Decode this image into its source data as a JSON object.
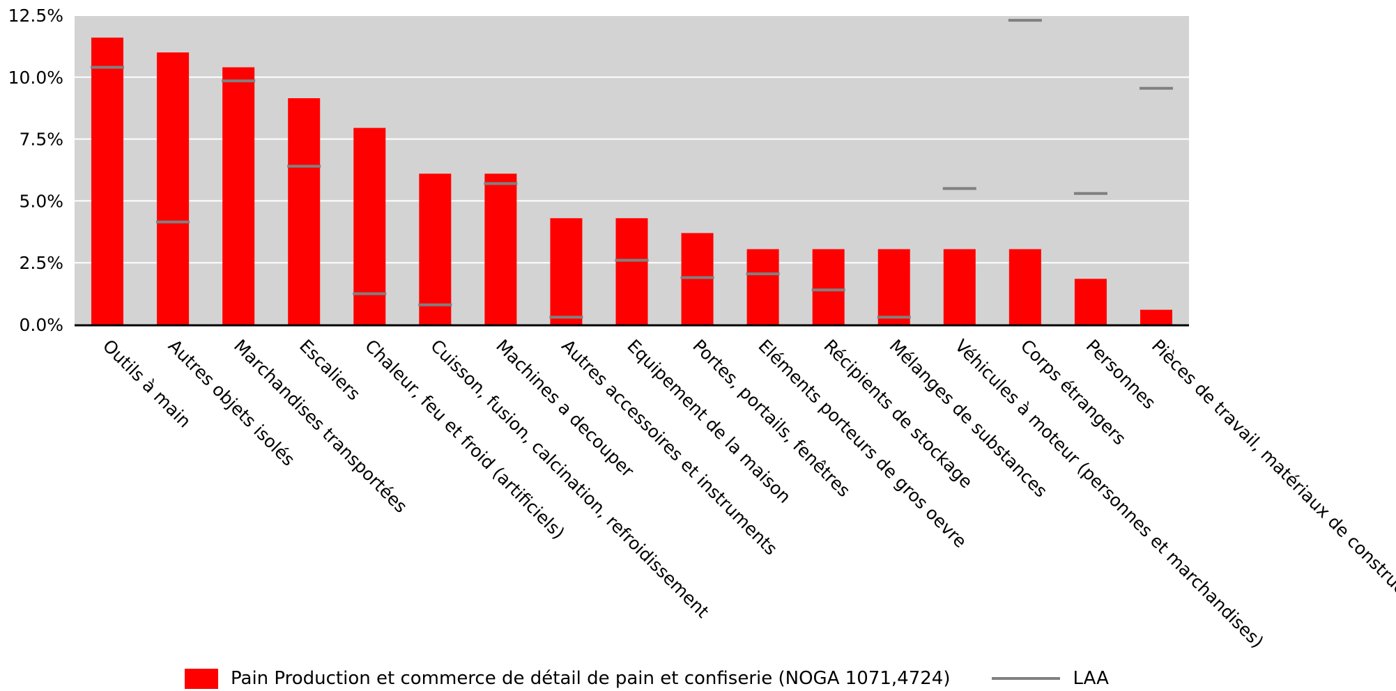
{
  "chart_data": {
    "type": "bar",
    "categories": [
      "Outils à main",
      "Autres objets isolés",
      "Marchandises transportées",
      "Escaliers",
      "Chaleur, feu et froid (artificiels)",
      "Cuisson, fusion, calcination, refroidissement",
      "Machines a decouper",
      "Autres accessoires et instruments",
      "Equipement de la maison",
      "Portes, portails, fenêtres",
      "Eléments porteurs de gros oevre",
      "Récipients de stockage",
      "Mélanges de substances",
      "Véhicules à moteur (personnes et marchandises)",
      "Corps étrangers",
      "Personnes",
      "Pièces de travail, matériaux de construction"
    ],
    "series": [
      {
        "name": "Pain Production et commerce de détail de pain et confiserie (NOGA 1071,4724)",
        "type": "bar",
        "color": "#ff0000",
        "values": [
          11.6,
          11.0,
          10.4,
          9.15,
          7.95,
          6.1,
          6.1,
          4.3,
          4.3,
          3.7,
          3.05,
          3.05,
          3.05,
          3.05,
          3.05,
          1.85,
          0.6
        ]
      },
      {
        "name": "LAA",
        "type": "marker",
        "color": "#808080",
        "values": [
          10.4,
          4.15,
          9.85,
          6.4,
          1.25,
          0.8,
          5.7,
          0.3,
          2.6,
          1.9,
          2.05,
          1.4,
          0.3,
          5.5,
          12.3,
          5.3,
          9.55
        ]
      }
    ],
    "ylim": [
      0,
      12.5
    ],
    "yticks": [
      "0.0%",
      "2.5%",
      "5.0%",
      "7.5%",
      "10.0%",
      "12.5%"
    ],
    "grid": true,
    "legend_position": "bottom",
    "colors": {
      "plot_background": "#d3d3d3",
      "gridline": "#ffffff"
    }
  }
}
